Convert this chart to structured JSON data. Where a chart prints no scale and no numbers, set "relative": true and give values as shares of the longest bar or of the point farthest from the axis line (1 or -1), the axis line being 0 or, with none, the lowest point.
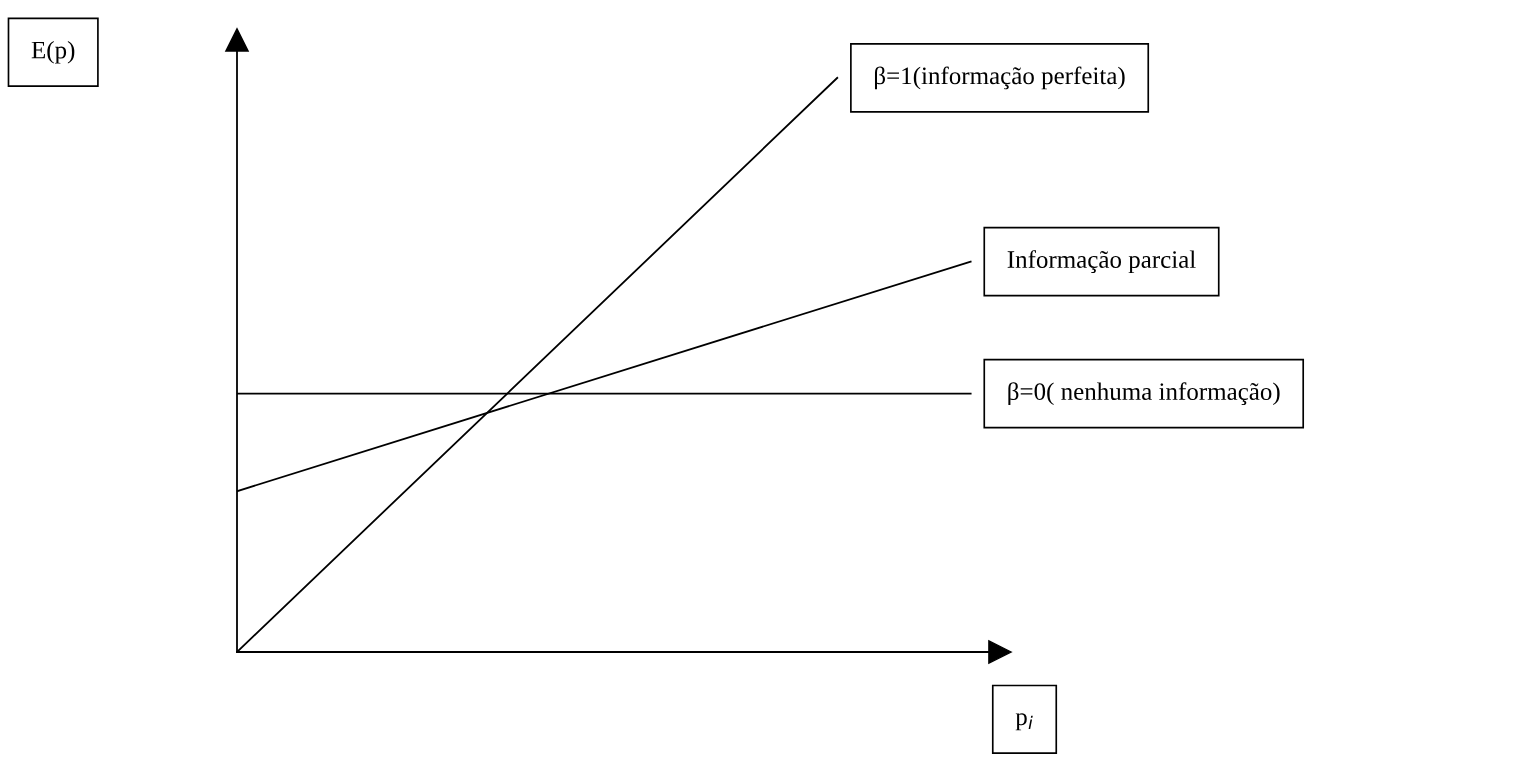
{
  "chart_data": {
    "type": "line",
    "relative": true,
    "xlabel": "p$_{i}$",
    "annotations": [
      "E(p)"
    ],
    "grid": false,
    "legend": false,
    "marker": "none",
    "line_style": "solid",
    "categories": [
      null,
      null,
      null,
      null,
      null,
      null,
      null,
      null,
      null,
      null,
      null,
      null
    ],
    "series": [
      {
        "name": "β=1(informação perfeita)",
        "color": "#000000",
        "values": [
          0,
          null,
          null,
          null,
          null,
          null,
          null,
          null,
          null,
          1,
          null,
          null
        ]
      },
      {
        "name": "Informação parcial",
        "color": "#000000",
        "values": [
          0.28,
          null,
          null,
          null,
          null,
          null,
          null,
          null,
          null,
          null,
          null,
          0.68
        ]
      },
      {
        "name": "β=0( nenhuma informação)",
        "color": "#000000",
        "values": [
          0.45,
          null,
          null,
          null,
          null,
          null,
          null,
          null,
          null,
          null,
          null,
          0.45
        ]
      }
    ]
  }
}
